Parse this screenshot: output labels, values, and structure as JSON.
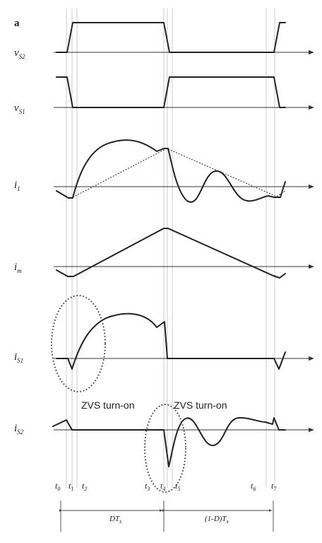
{
  "panel_label": "a",
  "signals": [
    {
      "key": "vS2",
      "symbol": "v",
      "sub": "S2"
    },
    {
      "key": "vS1",
      "symbol": "v",
      "sub": "S1"
    },
    {
      "key": "i1",
      "symbol": "i",
      "sub": "1"
    },
    {
      "key": "im",
      "symbol": "i",
      "sub": "m"
    },
    {
      "key": "iS1",
      "symbol": "i",
      "sub": "S1"
    },
    {
      "key": "iS2",
      "symbol": "i",
      "sub": "S2"
    }
  ],
  "time_labels": [
    {
      "key": "t0",
      "symbol": "t",
      "sub": "0"
    },
    {
      "key": "t1",
      "symbol": "t",
      "sub": "1"
    },
    {
      "key": "t2",
      "symbol": "t",
      "sub": "2"
    },
    {
      "key": "t3",
      "symbol": "t",
      "sub": "3"
    },
    {
      "key": "t4",
      "symbol": "t",
      "sub": "4"
    },
    {
      "key": "t5",
      "symbol": "t",
      "sub": "5"
    },
    {
      "key": "t6",
      "symbol": "t",
      "sub": "6"
    },
    {
      "key": "t7",
      "symbol": "t",
      "sub": "7"
    }
  ],
  "annotations": {
    "zvs_left": "ZVS turn-on",
    "zvs_right": "ZVS turn-on"
  },
  "intervals": {
    "first": {
      "main": "DT",
      "sub": "s"
    },
    "second": {
      "main": "(1-D)T",
      "sub": "s"
    }
  }
}
